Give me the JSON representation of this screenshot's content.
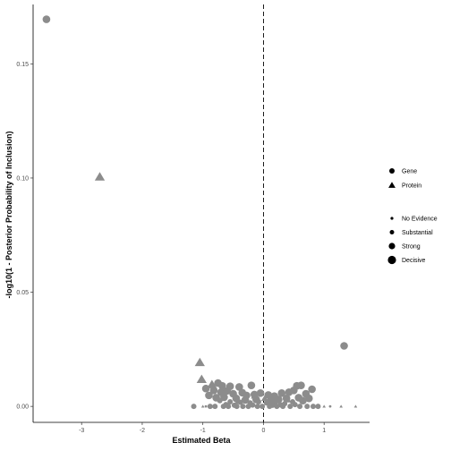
{
  "chart_data": {
    "type": "scatter",
    "xlabel": "Estimated Beta",
    "ylabel": "-log10(1 - Posterior Probability of Inclusion)",
    "xlim": [
      -3.8,
      1.75
    ],
    "ylim": [
      -0.007,
      0.176
    ],
    "x_ticks": [
      -3,
      -2,
      -1,
      0,
      1
    ],
    "x_tick_labels": [
      "-3",
      "-2",
      "-1",
      "0",
      "1"
    ],
    "y_ticks": [
      0.0,
      0.05,
      0.1,
      0.15
    ],
    "y_tick_labels": [
      "0.00",
      "0.05",
      "0.10",
      "0.15"
    ],
    "reference_line": {
      "x": 0,
      "style": "dashed"
    },
    "point_color": "#8c8c8c",
    "grid": false,
    "legend_position": "right",
    "legend_shape": {
      "entries": [
        {
          "label": "Gene",
          "shape": "circle"
        },
        {
          "label": "Protein",
          "shape": "triangle"
        }
      ]
    },
    "legend_size": {
      "entries": [
        {
          "label": "No Evidence",
          "size": 1
        },
        {
          "label": "Substantial",
          "size": 2
        },
        {
          "label": "Strong",
          "size": 3
        },
        {
          "label": "Decisive",
          "size": 4
        }
      ]
    },
    "points": [
      {
        "x": -3.58,
        "y": 0.1695,
        "shape": "circle",
        "size": 3
      },
      {
        "x": -2.7,
        "y": 0.1005,
        "shape": "triangle",
        "size": 3
      },
      {
        "x": 1.33,
        "y": 0.0265,
        "shape": "circle",
        "size": 3
      },
      {
        "x": -1.05,
        "y": 0.0192,
        "shape": "triangle",
        "size": 3
      },
      {
        "x": -1.02,
        "y": 0.0118,
        "shape": "triangle",
        "size": 3
      },
      {
        "x": -0.85,
        "y": 0.0095,
        "shape": "triangle",
        "size": 3
      },
      {
        "x": -0.75,
        "y": 0.0102,
        "shape": "circle",
        "size": 3
      },
      {
        "x": -0.68,
        "y": 0.009,
        "shape": "circle",
        "size": 3
      },
      {
        "x": -0.55,
        "y": 0.0088,
        "shape": "circle",
        "size": 3
      },
      {
        "x": -0.4,
        "y": 0.0085,
        "shape": "circle",
        "size": 3
      },
      {
        "x": -0.2,
        "y": 0.0092,
        "shape": "circle",
        "size": 3
      },
      {
        "x": 0.55,
        "y": 0.009,
        "shape": "circle",
        "size": 3
      },
      {
        "x": 0.62,
        "y": 0.0092,
        "shape": "circle",
        "size": 3
      },
      {
        "x": 0.8,
        "y": 0.0075,
        "shape": "circle",
        "size": 3
      },
      {
        "x": -0.95,
        "y": 0.0078,
        "shape": "circle",
        "size": 3
      },
      {
        "x": -0.82,
        "y": 0.007,
        "shape": "circle",
        "size": 3
      },
      {
        "x": -0.7,
        "y": 0.0062,
        "shape": "circle",
        "size": 3
      },
      {
        "x": -0.6,
        "y": 0.0068,
        "shape": "circle",
        "size": 3
      },
      {
        "x": -0.5,
        "y": 0.0055,
        "shape": "circle",
        "size": 3
      },
      {
        "x": -0.35,
        "y": 0.006,
        "shape": "circle",
        "size": 3
      },
      {
        "x": -0.28,
        "y": 0.0048,
        "shape": "circle",
        "size": 3
      },
      {
        "x": -0.15,
        "y": 0.0052,
        "shape": "circle",
        "size": 3
      },
      {
        "x": -0.05,
        "y": 0.0058,
        "shape": "circle",
        "size": 3
      },
      {
        "x": 0.08,
        "y": 0.005,
        "shape": "circle",
        "size": 3
      },
      {
        "x": 0.18,
        "y": 0.0045,
        "shape": "circle",
        "size": 3
      },
      {
        "x": 0.3,
        "y": 0.0058,
        "shape": "circle",
        "size": 3
      },
      {
        "x": 0.42,
        "y": 0.0062,
        "shape": "circle",
        "size": 3
      },
      {
        "x": 0.5,
        "y": 0.007,
        "shape": "circle",
        "size": 3
      },
      {
        "x": 0.7,
        "y": 0.0055,
        "shape": "circle",
        "size": 3
      },
      {
        "x": 0.75,
        "y": 0.0035,
        "shape": "circle",
        "size": 3
      },
      {
        "x": -0.9,
        "y": 0.0048,
        "shape": "circle",
        "size": 3
      },
      {
        "x": -0.78,
        "y": 0.0038,
        "shape": "circle",
        "size": 3
      },
      {
        "x": -0.65,
        "y": 0.004,
        "shape": "circle",
        "size": 3
      },
      {
        "x": -0.45,
        "y": 0.0035,
        "shape": "circle",
        "size": 3
      },
      {
        "x": -0.3,
        "y": 0.0028,
        "shape": "circle",
        "size": 3
      },
      {
        "x": -0.12,
        "y": 0.003,
        "shape": "circle",
        "size": 3
      },
      {
        "x": 0.12,
        "y": 0.0025,
        "shape": "circle",
        "size": 3
      },
      {
        "x": 0.25,
        "y": 0.003,
        "shape": "circle",
        "size": 3
      },
      {
        "x": 0.38,
        "y": 0.0035,
        "shape": "circle",
        "size": 3
      },
      {
        "x": 0.58,
        "y": 0.0038,
        "shape": "circle",
        "size": 3
      },
      {
        "x": 0.65,
        "y": 0.0025,
        "shape": "circle",
        "size": 3
      },
      {
        "x": -0.72,
        "y": 0.0025,
        "shape": "circle",
        "size": 2
      },
      {
        "x": -0.55,
        "y": 0.002,
        "shape": "circle",
        "size": 2
      },
      {
        "x": -0.38,
        "y": 0.0018,
        "shape": "circle",
        "size": 2
      },
      {
        "x": -0.22,
        "y": 0.0015,
        "shape": "circle",
        "size": 2
      },
      {
        "x": -0.08,
        "y": 0.002,
        "shape": "circle",
        "size": 2
      },
      {
        "x": 0.05,
        "y": 0.0015,
        "shape": "circle",
        "size": 2
      },
      {
        "x": 0.2,
        "y": 0.0018,
        "shape": "circle",
        "size": 2
      },
      {
        "x": 0.35,
        "y": 0.0012,
        "shape": "circle",
        "size": 2
      },
      {
        "x": 0.48,
        "y": 0.002,
        "shape": "circle",
        "size": 2
      },
      {
        "x": 0.52,
        "y": 0.0008,
        "shape": "circle",
        "size": 2
      },
      {
        "x": -0.62,
        "y": 0.0008,
        "shape": "circle",
        "size": 2
      },
      {
        "x": -0.48,
        "y": 0.0005,
        "shape": "circle",
        "size": 2
      },
      {
        "x": -0.18,
        "y": 0.0006,
        "shape": "circle",
        "size": 2
      },
      {
        "x": 0.15,
        "y": 0.0005,
        "shape": "circle",
        "size": 2
      },
      {
        "x": 0.28,
        "y": 0.0007,
        "shape": "circle",
        "size": 2
      },
      {
        "x": -0.15,
        "y": 0.0045,
        "shape": "triangle",
        "size": 2
      },
      {
        "x": 0.02,
        "y": 0.0035,
        "shape": "triangle",
        "size": 2
      },
      {
        "x": -0.42,
        "y": 0.0022,
        "shape": "triangle",
        "size": 2
      },
      {
        "x": 0.4,
        "y": 0.0028,
        "shape": "triangle",
        "size": 2
      },
      {
        "x": -0.88,
        "y": 0.0,
        "shape": "circle",
        "size": 2
      },
      {
        "x": -0.8,
        "y": 0.0,
        "shape": "circle",
        "size": 2
      },
      {
        "x": -0.66,
        "y": 0.0,
        "shape": "circle",
        "size": 2
      },
      {
        "x": -0.58,
        "y": 0.0,
        "shape": "circle",
        "size": 2
      },
      {
        "x": -0.44,
        "y": 0.0,
        "shape": "circle",
        "size": 2
      },
      {
        "x": -0.34,
        "y": 0.0,
        "shape": "circle",
        "size": 2
      },
      {
        "x": -0.25,
        "y": 0.0,
        "shape": "circle",
        "size": 2
      },
      {
        "x": -0.1,
        "y": 0.0,
        "shape": "circle",
        "size": 2
      },
      {
        "x": -0.02,
        "y": 0.0,
        "shape": "circle",
        "size": 2
      },
      {
        "x": 0.1,
        "y": 0.0,
        "shape": "circle",
        "size": 2
      },
      {
        "x": 0.22,
        "y": 0.0,
        "shape": "circle",
        "size": 2
      },
      {
        "x": 0.32,
        "y": 0.0,
        "shape": "circle",
        "size": 2
      },
      {
        "x": 0.44,
        "y": 0.0,
        "shape": "circle",
        "size": 2
      },
      {
        "x": 0.6,
        "y": 0.0,
        "shape": "circle",
        "size": 2
      },
      {
        "x": 0.72,
        "y": 0.0,
        "shape": "circle",
        "size": 2
      },
      {
        "x": 0.82,
        "y": 0.0,
        "shape": "circle",
        "size": 2
      },
      {
        "x": 0.9,
        "y": 0.0,
        "shape": "circle",
        "size": 2
      },
      {
        "x": -1.15,
        "y": 0.0,
        "shape": "circle",
        "size": 2
      },
      {
        "x": -1.0,
        "y": 0.0,
        "shape": "triangle",
        "size": 1
      },
      {
        "x": -0.95,
        "y": 0.0,
        "shape": "circle",
        "size": 1
      },
      {
        "x": 1.0,
        "y": 0.0,
        "shape": "triangle",
        "size": 1
      },
      {
        "x": 1.1,
        "y": 0.0,
        "shape": "circle",
        "size": 1
      },
      {
        "x": 1.28,
        "y": 0.0,
        "shape": "triangle",
        "size": 1
      },
      {
        "x": 1.52,
        "y": 0.0,
        "shape": "triangle",
        "size": 1
      }
    ]
  }
}
